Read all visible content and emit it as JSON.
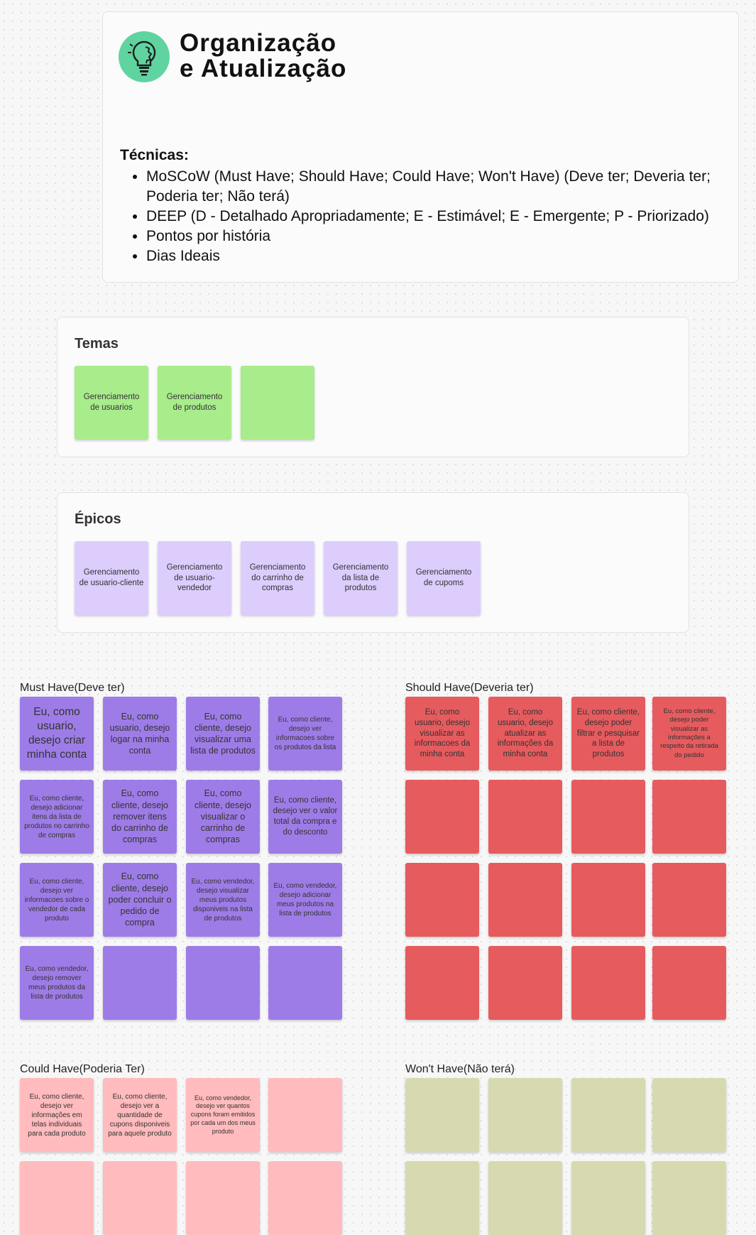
{
  "header": {
    "title_line1": "Organização",
    "title_line2": "e Atualização",
    "techniques_label": "Técnicas:",
    "techniques": [
      "MoSCoW (Must Have; Should Have; Could Have; Won't Have) (Deve ter; Deveria ter; Poderia ter; Não terá)",
      "DEEP (D - Detalhado Apropriadamente; E - Estimável; E - Emergente; P - Priorizado)",
      "Pontos por história",
      "Dias Ideais"
    ]
  },
  "temas": {
    "title": "Temas",
    "notes": [
      "Gerenciamento de usuarios",
      "Gerenciamento de produtos",
      ""
    ]
  },
  "epicos": {
    "title": "Épicos",
    "notes": [
      "Gerenciamento de usuario-cliente",
      "Gerenciamento de usuario-vendedor",
      "Gerenciamento do carrinho de compras",
      "Gerenciamento da lista de produtos",
      "Gerenciamento de cupoms"
    ]
  },
  "must_have": {
    "label": "Must Have(Deve ter)",
    "notes": [
      "Eu, como usuario, desejo criar minha conta",
      "Eu, como usuario, desejo logar na minha conta",
      "Eu, como cliente, desejo visualizar uma lista de produtos",
      "Eu, como cliente, desejo ver informacoes sobre os produtos da lista",
      "Eu, como cliente, desejo adicionar itens da lista de produtos no carrinho de compras",
      "Eu, como cliente, desejo remover itens do carrinho de compras",
      "Eu, como cliente, desejo visualizar o carrinho de compras",
      "Eu, como cliente, desejo ver o valor total da compra e do desconto",
      "Eu, como cliente, desejo ver informacoes sobre o vendedor de cada produto",
      "Eu, como cliente, desejo poder concluir o pedido de compra",
      "Eu, como vendedor, desejo visualizar meus produtos disponiveis na lista de produtos",
      "Eu, como vendedor, desejo adicionar meus produtos na lista de produtos",
      "Eu, como vendedor, desejo remover meus produtos da lista de produtos",
      "",
      "",
      ""
    ]
  },
  "should_have": {
    "label": "Should Have(Deveria ter)",
    "notes": [
      "Eu, como usuario, desejo visualizar as informacoes da minha conta",
      "Eu, como usuario, desejo atualizar as informações da minha conta",
      "Eu, como cliente, desejo poder filtrar e pesquisar a lista de produtos",
      "Eu, como cliente, desejo poder visualizar as informações a respeito da retirada do pedido",
      "",
      "",
      "",
      "",
      "",
      "",
      "",
      "",
      "",
      "",
      "",
      ""
    ]
  },
  "could_have": {
    "label": "Could Have(Poderia Ter)",
    "notes": [
      "Eu, como cliente, desejo ver informações em telas individuais para cada produto",
      "Eu, como cliente, desejo ver a quantidade de cupons disponiveis para aquele produto",
      "Eu, como vendedor, desejo ver quantos cupons foram emitidos por cada um dos meus produto",
      "",
      "",
      "",
      "",
      ""
    ]
  },
  "wont_have": {
    "label": "Won't Have(Não terá)",
    "notes": [
      "",
      "",
      "",
      "",
      "",
      "",
      "",
      ""
    ]
  },
  "colors": {
    "green": "#a8ec8c",
    "lavender": "#dccdfd",
    "purple": "#9e7ce7",
    "red": "#e65b5e",
    "pink": "#ffbbbd",
    "olive": "#d7dab0",
    "logo_teal": "#5fd4a0"
  }
}
